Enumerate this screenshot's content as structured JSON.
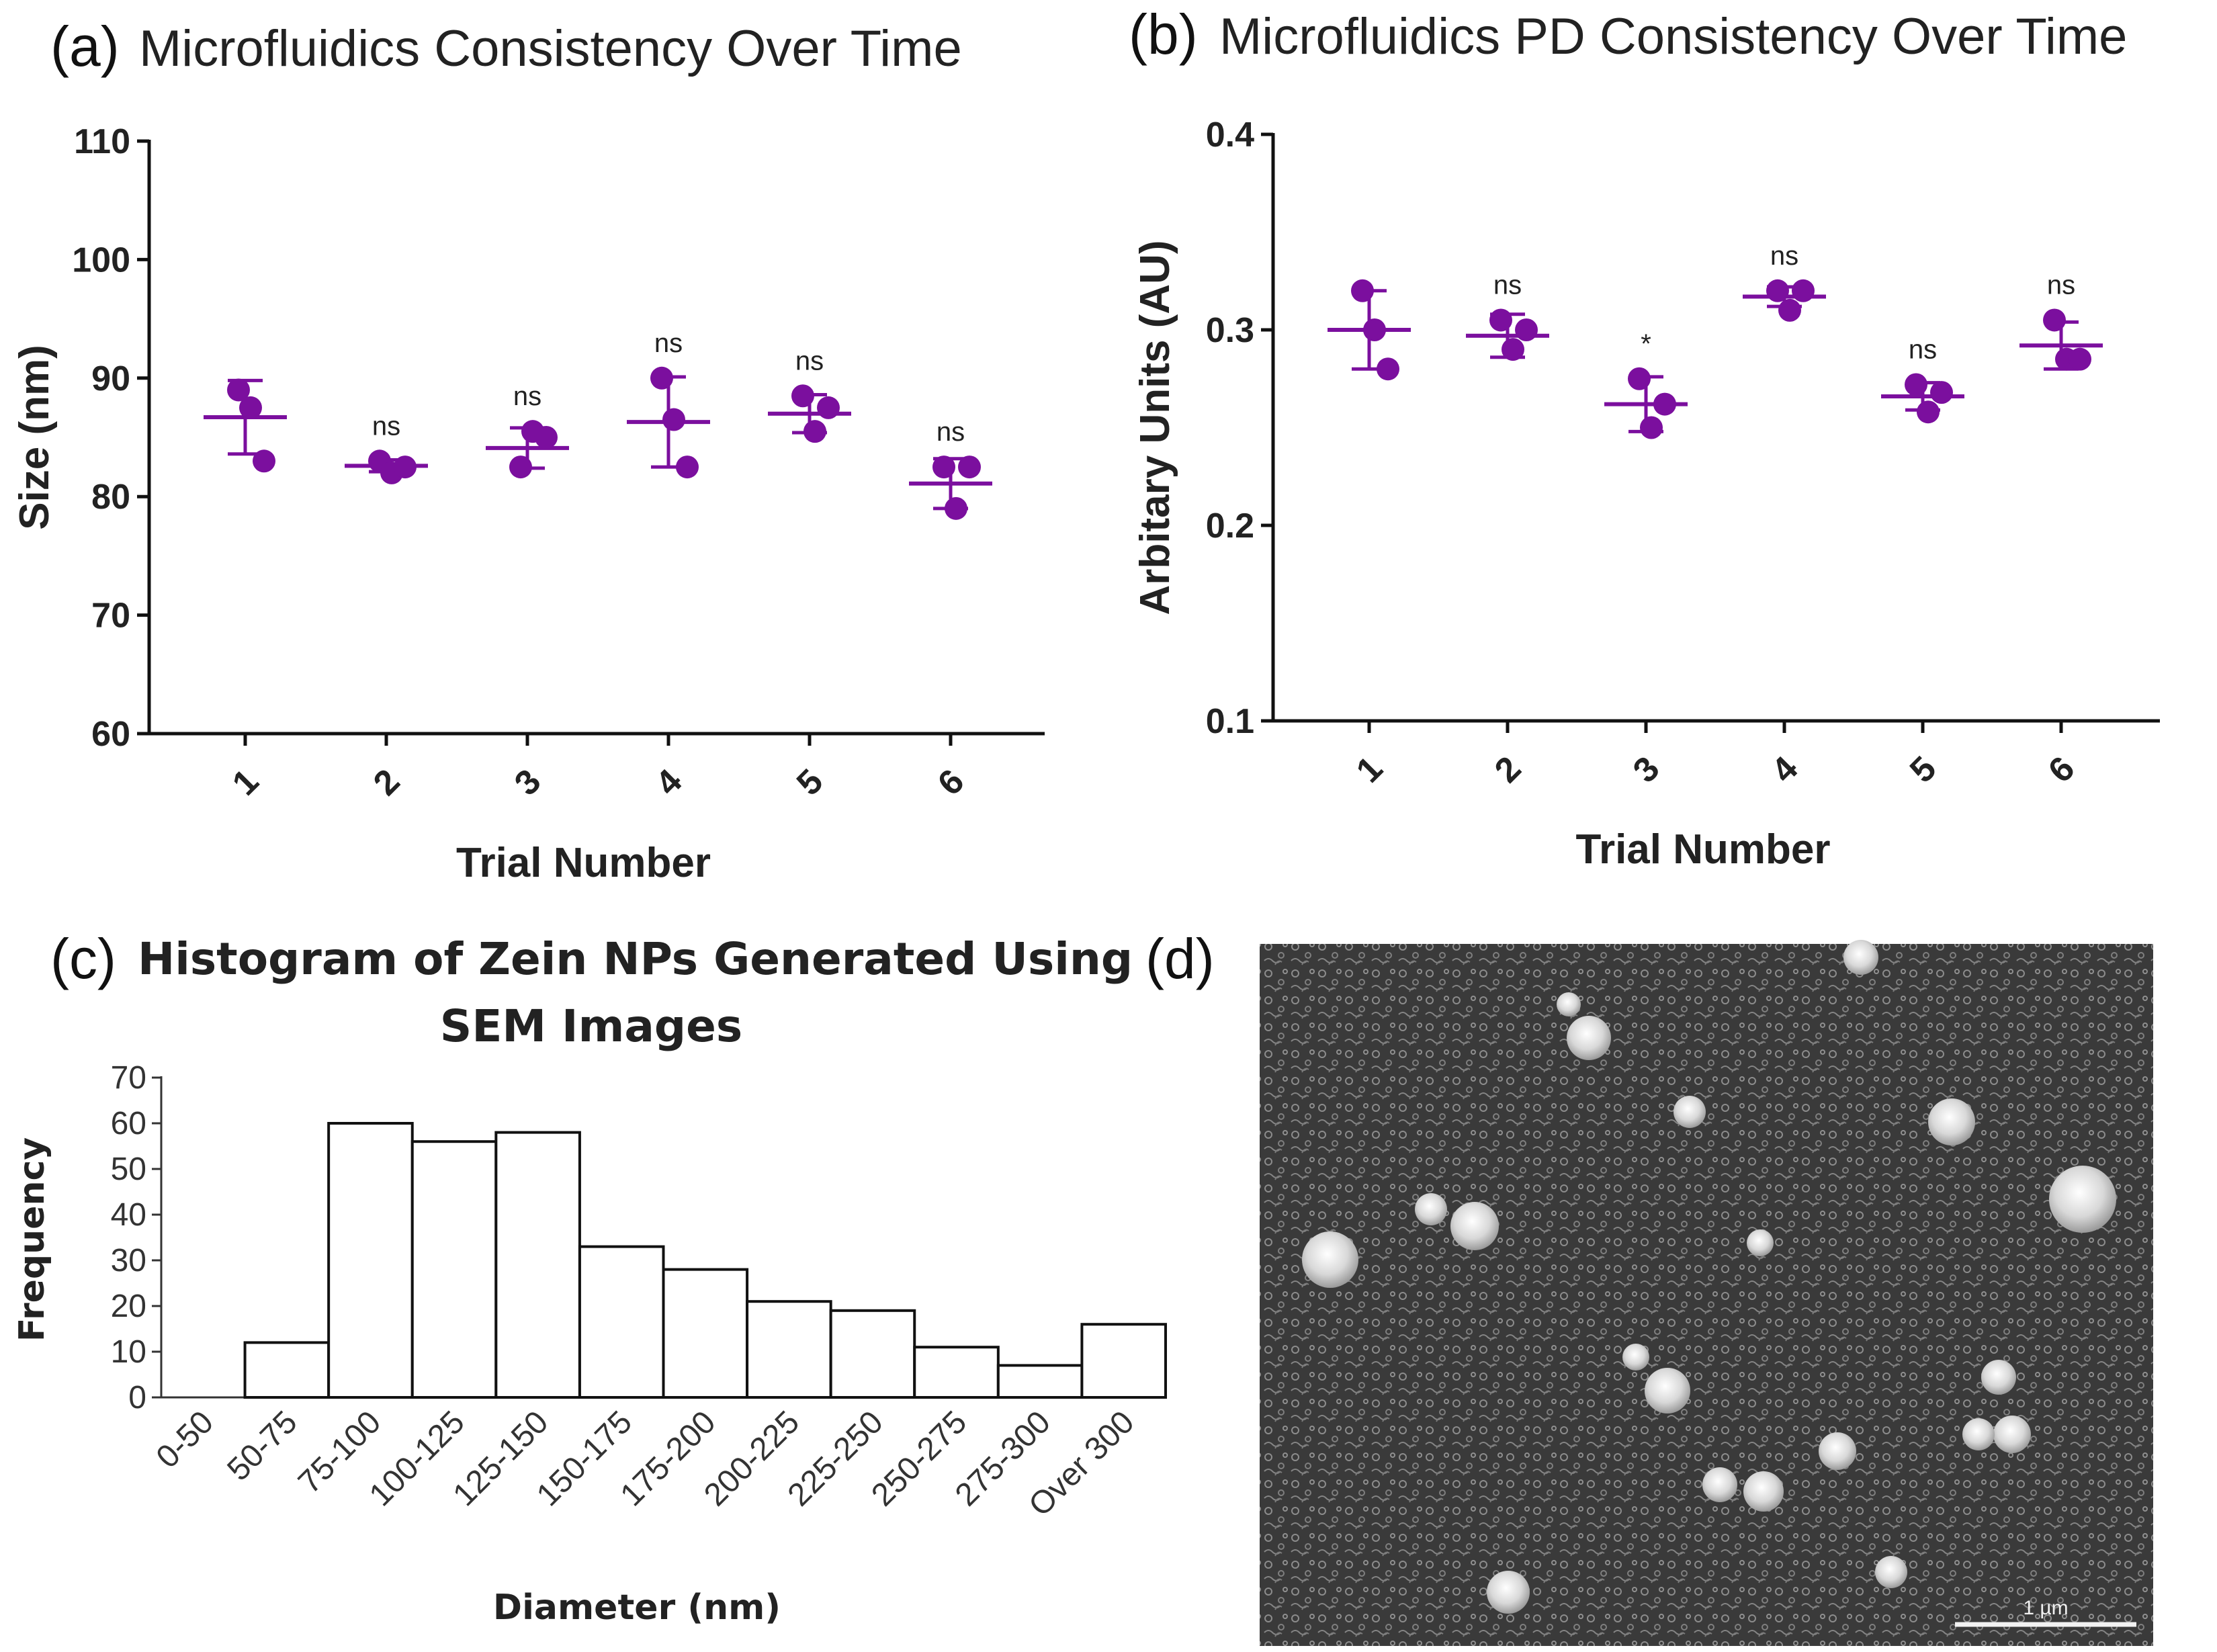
{
  "colors": {
    "accent": "#7b0f9e",
    "axis": "#111111",
    "sem_bg": "#3a3a3a"
  },
  "panels": {
    "a": {
      "letter": "(a)",
      "title": "Microfluidics Consistency Over Time"
    },
    "b": {
      "letter": "(b)",
      "title": "Microfluidics PD Consistency Over Time"
    },
    "c": {
      "letter": "(c)",
      "title_line1": "Histogram of Zein NPs Generated Using",
      "title_line2": "SEM Images"
    },
    "d": {
      "letter": "(d)",
      "image_label": "SEM micrograph of zein nanoparticles",
      "scale_bar": "1 µm"
    }
  },
  "chart_data": [
    {
      "id": "a",
      "type": "scatter",
      "title": "Microfluidics Consistency Over Time",
      "xlabel": "Trial Number",
      "ylabel": "Size (nm)",
      "ylim": [
        60,
        110
      ],
      "yticks": [
        60,
        70,
        80,
        90,
        100,
        110
      ],
      "categories": [
        "1",
        "2",
        "3",
        "4",
        "5",
        "6"
      ],
      "points": [
        [
          89,
          87.5,
          83
        ],
        [
          83,
          82,
          82.5
        ],
        [
          82.5,
          85.5,
          85
        ],
        [
          90,
          86.5,
          82.5
        ],
        [
          88.5,
          85.5,
          87.5
        ],
        [
          82.5,
          79,
          82.5
        ]
      ],
      "mean": [
        86.7,
        82.6,
        84.1,
        86.3,
        87.0,
        81.1
      ],
      "sd": [
        3.1,
        0.5,
        1.7,
        3.8,
        1.6,
        2.1
      ],
      "significance": [
        "",
        "ns",
        "ns",
        "ns",
        "ns",
        "ns"
      ]
    },
    {
      "id": "b",
      "type": "scatter",
      "title": "Microfluidics PD Consistency Over Time",
      "xlabel": "Trial Number",
      "ylabel": "Arbitary Units (AU)",
      "ylim": [
        0.1,
        0.4
      ],
      "yticks": [
        "0.1",
        "0.2",
        "0.3",
        "0.4"
      ],
      "categories": [
        "1",
        "2",
        "3",
        "4",
        "5",
        "6"
      ],
      "points": [
        [
          0.32,
          0.3,
          0.28
        ],
        [
          0.305,
          0.29,
          0.3
        ],
        [
          0.275,
          0.25,
          0.262
        ],
        [
          0.32,
          0.31,
          0.32
        ],
        [
          0.272,
          0.258,
          0.268
        ],
        [
          0.305,
          0.285,
          0.285
        ]
      ],
      "mean": [
        0.3,
        0.297,
        0.262,
        0.317,
        0.266,
        0.292
      ],
      "sd": [
        0.02,
        0.011,
        0.014,
        0.005,
        0.007,
        0.012
      ],
      "significance": [
        "",
        "ns",
        "*",
        "ns",
        "ns",
        "ns"
      ]
    },
    {
      "id": "c",
      "type": "bar",
      "title": "Histogram of Zein NPs Generated Using SEM Images",
      "xlabel": "Diameter (nm)",
      "ylabel": "Frequency",
      "ylim": [
        0,
        70
      ],
      "yticks": [
        0,
        10,
        20,
        30,
        40,
        50,
        60,
        70
      ],
      "categories": [
        "0-50",
        "50-75",
        "75-100",
        "100-125",
        "125-150",
        "150-175",
        "175-200",
        "200-225",
        "225-250",
        "250-275",
        "275-300",
        "Over 300"
      ],
      "values": [
        0,
        12,
        60,
        56,
        58,
        33,
        28,
        21,
        19,
        11,
        7,
        16
      ]
    }
  ]
}
